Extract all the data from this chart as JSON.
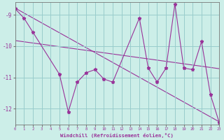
{
  "background_color": "#cceee8",
  "grid_color": "#99cccc",
  "line_color": "#993399",
  "xlabel": "Windchill (Refroidissement éolien,°C)",
  "xlim": [
    0,
    23
  ],
  "ylim": [
    -12.5,
    -8.6
  ],
  "yticks": [
    -12,
    -11,
    -10,
    -9
  ],
  "xticks": [
    0,
    1,
    2,
    3,
    4,
    5,
    6,
    7,
    8,
    9,
    10,
    11,
    12,
    13,
    14,
    15,
    16,
    17,
    18,
    19,
    20,
    21,
    22,
    23
  ],
  "series1": [
    [
      0,
      -8.8
    ],
    [
      1,
      -9.1
    ],
    [
      2,
      -9.55
    ],
    [
      5,
      -10.9
    ],
    [
      6,
      -12.1
    ],
    [
      7,
      -11.15
    ],
    [
      8,
      -10.85
    ],
    [
      9,
      -10.75
    ],
    [
      10,
      -11.05
    ],
    [
      11,
      -11.15
    ],
    [
      14,
      -9.1
    ],
    [
      15,
      -10.7
    ],
    [
      16,
      -11.15
    ],
    [
      17,
      -10.7
    ],
    [
      18,
      -8.65
    ],
    [
      19,
      -10.7
    ],
    [
      20,
      -10.75
    ],
    [
      21,
      -9.85
    ],
    [
      22,
      -11.55
    ],
    [
      23,
      -12.45
    ]
  ],
  "trend1_x": [
    0,
    23
  ],
  "trend1_y": [
    -8.78,
    -12.42
  ],
  "trend2_x": [
    0,
    23
  ],
  "trend2_y": [
    -9.82,
    -10.72
  ]
}
